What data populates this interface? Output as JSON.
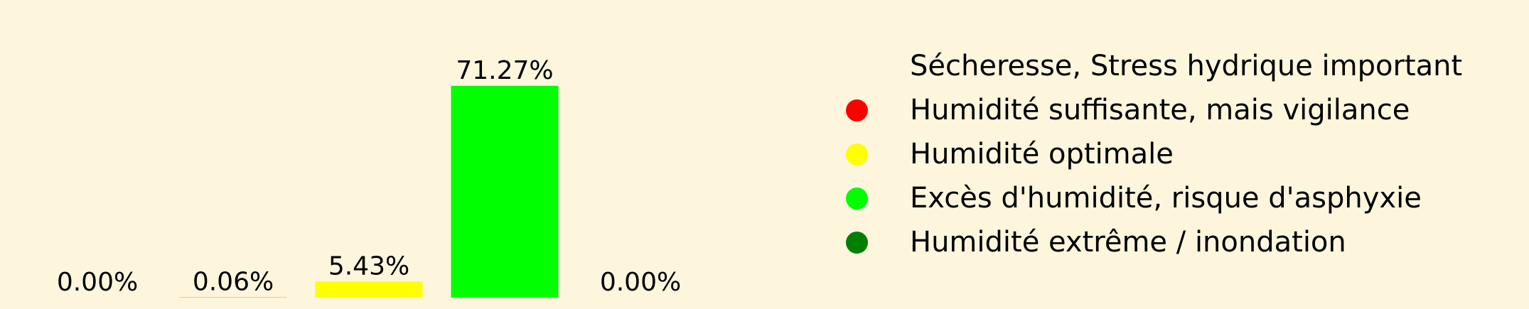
{
  "chart_data": {
    "type": "bar",
    "categories": [
      "Sécheresse, Stress hydrique important",
      "Humidité suffisante, mais vigilance",
      "Humidité optimale",
      "Excès d'humidité, risque d'asphyxie",
      "Humidité extrême / inondation"
    ],
    "values": [
      0.0,
      0.06,
      5.43,
      71.27,
      0.0
    ],
    "value_labels": [
      "0.00%",
      "0.06%",
      "5.43%",
      "71.27%",
      "0.00%"
    ],
    "colors": [
      "#fdf6dc",
      "#ff0000",
      "#ffff00",
      "#00ff00",
      "#007f00"
    ],
    "title": "",
    "xlabel": "",
    "ylabel": "",
    "ylim": [
      0,
      76
    ],
    "grid": false,
    "axes_visible": false,
    "legend_position": "right"
  },
  "legend": {
    "items": [
      {
        "label": "Sécheresse, Stress hydrique important",
        "color": "#fdf6dc"
      },
      {
        "label": "Humidité suffisante, mais vigilance",
        "color": "#ff0000"
      },
      {
        "label": "Humidité optimale",
        "color": "#ffff00"
      },
      {
        "label": "Excès d'humidité, risque d'asphyxie",
        "color": "#00ff00"
      },
      {
        "label": "Humidité extrême / inondation",
        "color": "#007f00"
      }
    ]
  }
}
